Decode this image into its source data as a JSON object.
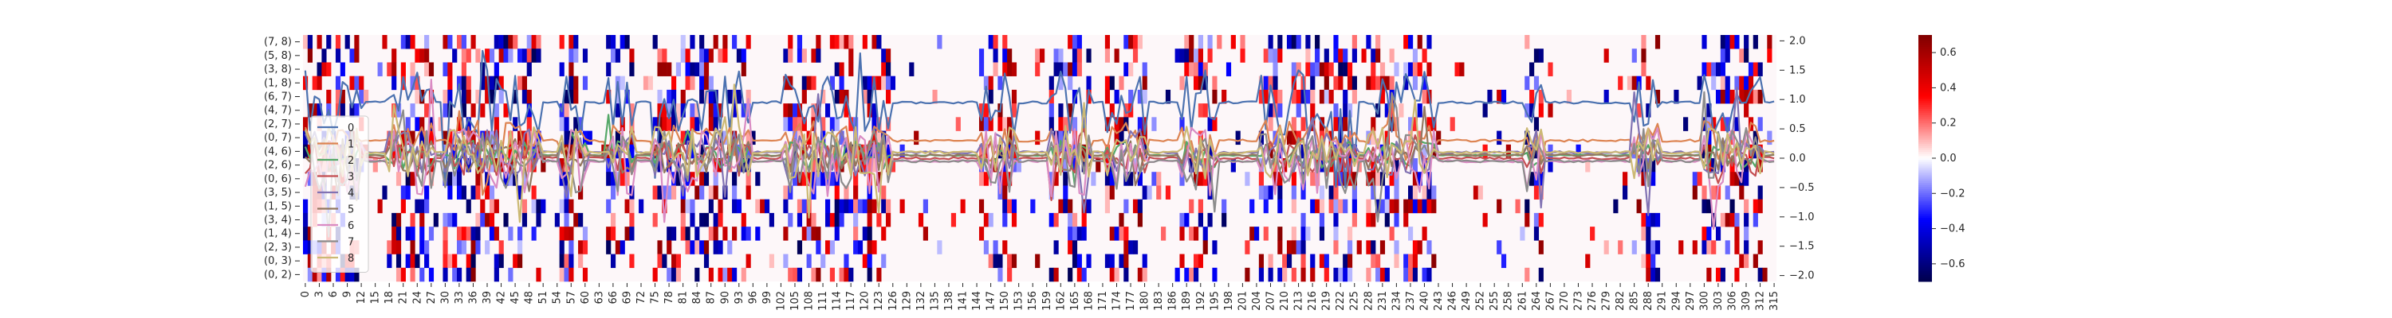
{
  "chart_data": [
    {
      "type": "heatmap",
      "rows": [
        "(7, 8)",
        "(5, 8)",
        "(3, 8)",
        "(1, 8)",
        "(6, 7)",
        "(4, 7)",
        "(2, 7)",
        "(0, 7)",
        "(4, 6)",
        "(2, 6)",
        "(0, 6)",
        "(3, 5)",
        "(1, 5)",
        "(3, 4)",
        "(1, 4)",
        "(2, 3)",
        "(0, 3)",
        "(0, 2)"
      ],
      "x_tick_step": 3,
      "n_columns": 316,
      "colorbar": {
        "min": -0.7,
        "max": 0.7,
        "ticks": [
          0.6,
          0.4,
          0.2,
          0.0,
          -0.2,
          -0.4,
          -0.6
        ],
        "tick_labels": [
          "0.6",
          "0.4",
          "0.2",
          "0.0",
          "−0.2",
          "−0.4",
          "−0.6"
        ],
        "colormap": "seismic"
      },
      "colors": {
        "neg_dark": "#00004c",
        "neg": "#0000ff",
        "zero": "#ffffff",
        "pos": "#ff0000",
        "pos_dark": "#800000"
      },
      "active_column_bands": [
        [
          0,
          12
        ],
        [
          18,
          27
        ],
        [
          30,
          50
        ],
        [
          55,
          60
        ],
        [
          65,
          70
        ],
        [
          75,
          95
        ],
        [
          103,
          125
        ],
        [
          145,
          152
        ],
        [
          160,
          168
        ],
        [
          172,
          180
        ],
        [
          188,
          195
        ],
        [
          205,
          225
        ],
        [
          228,
          234
        ],
        [
          236,
          242
        ],
        [
          262,
          265
        ],
        [
          285,
          290
        ],
        [
          300,
          312
        ]
      ],
      "grid": false
    },
    {
      "type": "line",
      "ylim": [
        -2.1,
        2.1
      ],
      "y_ticks": [
        2.0,
        1.5,
        1.0,
        0.5,
        0.0,
        -0.5,
        -1.0,
        -1.5,
        -2.0
      ],
      "y_tick_labels": [
        "2.0",
        "1.5",
        "1.0",
        "0.5",
        "0.0",
        "−0.5",
        "−1.0",
        "−1.5",
        "−2.0"
      ],
      "y_axis_side": "right",
      "legend_position": "left",
      "series": [
        {
          "name": "0",
          "color": "#4c72b0",
          "base": 0.95,
          "amp_active": 0.55,
          "amp_quiet": 0.02,
          "seed": 11
        },
        {
          "name": "1",
          "color": "#dd8452",
          "base": 0.3,
          "amp_active": 0.35,
          "amp_quiet": 0.02,
          "seed": 23
        },
        {
          "name": "2",
          "color": "#55a868",
          "base": 0.05,
          "amp_active": 0.25,
          "amp_quiet": 0.01,
          "seed": 37
        },
        {
          "name": "3",
          "color": "#c44e52",
          "base": 0.0,
          "amp_active": 0.3,
          "amp_quiet": 0.02,
          "seed": 41
        },
        {
          "name": "4",
          "color": "#8172b3",
          "base": 0.1,
          "amp_active": 0.4,
          "amp_quiet": 0.02,
          "seed": 53
        },
        {
          "name": "5",
          "color": "#937860",
          "base": 0.05,
          "amp_active": 0.3,
          "amp_quiet": 0.02,
          "seed": 61
        },
        {
          "name": "6",
          "color": "#da8bc3",
          "base": -0.05,
          "amp_active": 0.6,
          "amp_quiet": 0.02,
          "seed": 71
        },
        {
          "name": "7",
          "color": "#8c8c8c",
          "base": -0.05,
          "amp_active": 0.55,
          "amp_quiet": 0.02,
          "seed": 83
        },
        {
          "name": "8",
          "color": "#ccb974",
          "base": 0.1,
          "amp_active": 0.45,
          "amp_quiet": 0.02,
          "seed": 97
        }
      ]
    }
  ]
}
